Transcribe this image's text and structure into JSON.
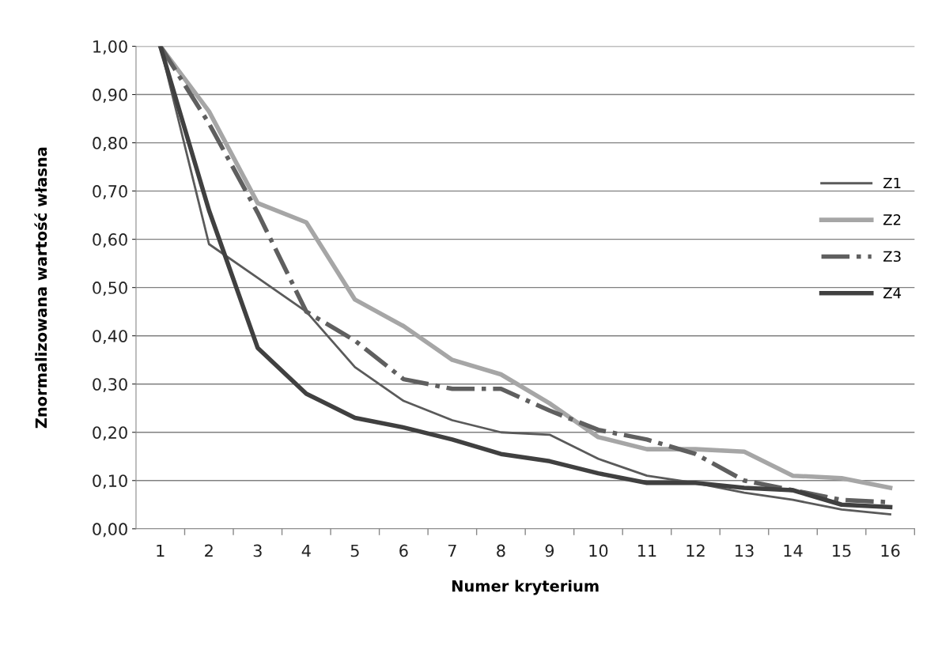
{
  "chart_data": {
    "type": "line",
    "xlabel": "Numer kryterium",
    "ylabel": "Znormalizowana wartość własna",
    "categories": [
      "1",
      "2",
      "3",
      "4",
      "5",
      "6",
      "7",
      "8",
      "9",
      "10",
      "11",
      "12",
      "13",
      "14",
      "15",
      "16"
    ],
    "series": [
      {
        "name": "Z1",
        "color": "#5a5a5a",
        "line_style": "solid",
        "values": [
          1.0,
          0.59,
          0.52,
          0.45,
          0.335,
          0.265,
          0.225,
          0.2,
          0.195,
          0.145,
          0.11,
          0.095,
          0.075,
          0.06,
          0.04,
          0.03
        ]
      },
      {
        "name": "Z2",
        "color": "#a6a6a6",
        "line_style": "solid",
        "values": [
          1.0,
          0.865,
          0.675,
          0.635,
          0.475,
          0.42,
          0.35,
          0.32,
          0.26,
          0.19,
          0.165,
          0.165,
          0.16,
          0.11,
          0.105,
          0.085
        ]
      },
      {
        "name": "Z3",
        "color": "#5f5f5f",
        "line_style": "dashdot",
        "values": [
          1.0,
          0.84,
          0.655,
          0.45,
          0.39,
          0.31,
          0.29,
          0.29,
          0.245,
          0.205,
          0.185,
          0.155,
          0.1,
          0.08,
          0.06,
          0.055
        ]
      },
      {
        "name": "Z4",
        "color": "#404040",
        "line_style": "solid",
        "values": [
          1.0,
          0.66,
          0.375,
          0.28,
          0.23,
          0.21,
          0.185,
          0.155,
          0.14,
          0.115,
          0.095,
          0.095,
          0.085,
          0.08,
          0.05,
          0.045
        ]
      }
    ],
    "ylim": [
      0,
      1
    ],
    "yticks": [
      {
        "value": 0,
        "label": "0,00"
      },
      {
        "value": 0.1,
        "label": "0,10"
      },
      {
        "value": 0.2,
        "label": "0,20"
      },
      {
        "value": 0.3,
        "label": "0,30"
      },
      {
        "value": 0.4,
        "label": "0,40"
      },
      {
        "value": 0.5,
        "label": "0,50"
      },
      {
        "value": 0.6,
        "label": "0,60"
      },
      {
        "value": 0.7,
        "label": "0,70"
      },
      {
        "value": 0.8,
        "label": "0,80"
      },
      {
        "value": 0.9,
        "label": "0,90"
      },
      {
        "value": 1.0,
        "label": "1,00"
      }
    ],
    "grid": "y",
    "legend": "right",
    "marker": "none"
  }
}
